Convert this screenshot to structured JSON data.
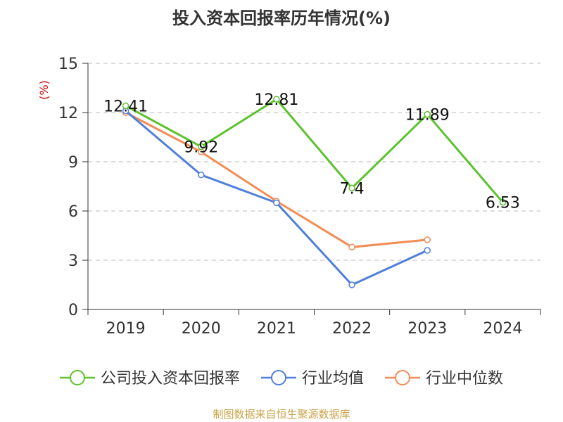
{
  "chart_data": {
    "type": "line",
    "title": "投入资本回报率历年情况(%)",
    "ylabel": "(%)",
    "xlabel": "",
    "categories": [
      "2019",
      "2020",
      "2021",
      "2022",
      "2023",
      "2024"
    ],
    "ylim": [
      0,
      15
    ],
    "yticks": [
      0,
      3,
      6,
      9,
      12,
      15
    ],
    "grid": true,
    "legend_position": "bottom",
    "series": [
      {
        "name": "公司投入资本回报率",
        "color": "#5cc22d",
        "values": [
          12.41,
          9.92,
          12.81,
          7.4,
          11.89,
          6.53
        ],
        "labels": [
          "12.41",
          "9.92",
          "12.81",
          "7.4",
          "11.89",
          "6.53"
        ]
      },
      {
        "name": "行业均值",
        "color": "#4f7fd9",
        "values": [
          12.1,
          8.2,
          6.5,
          1.5,
          3.6,
          null
        ]
      },
      {
        "name": "行业中位数",
        "color": "#f28c55",
        "values": [
          12.0,
          9.6,
          6.6,
          3.8,
          4.25,
          null
        ]
      }
    ]
  },
  "source_note": "制图数据来自恒生聚源数据库"
}
